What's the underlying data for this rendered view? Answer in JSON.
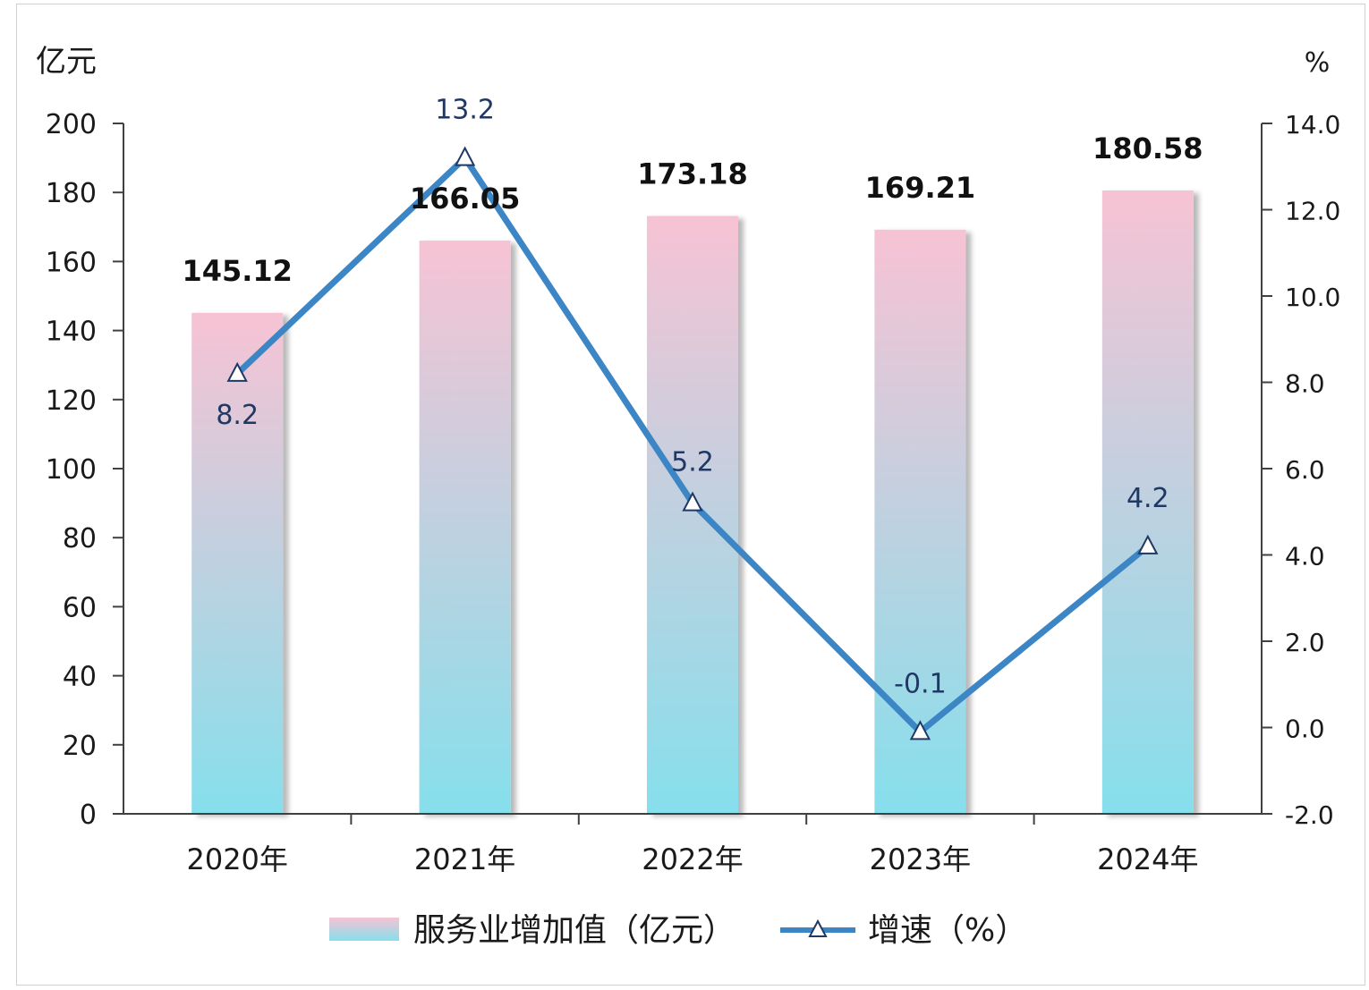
{
  "chart_data": {
    "type": "bar",
    "categories": [
      "2020年",
      "2021年",
      "2022年",
      "2023年",
      "2024年"
    ],
    "series": [
      {
        "name": "服务业增加值（亿元）",
        "type": "bar",
        "axis": "left",
        "values": [
          145.12,
          166.05,
          173.18,
          169.21,
          180.58
        ],
        "labels": [
          "145.12",
          "166.05",
          "173.18",
          "169.21",
          "180.58"
        ],
        "gradient_top": "#f7c3d4",
        "gradient_bottom": "#86dfec"
      },
      {
        "name": "增速（%）",
        "type": "line",
        "axis": "right",
        "marker": "triangle",
        "values": [
          8.2,
          13.2,
          5.2,
          -0.1,
          4.2
        ],
        "labels": [
          "8.2",
          "13.2",
          "5.2",
          "-0.1",
          "4.2"
        ],
        "color": "#3d86c6"
      }
    ],
    "left_axis": {
      "unit": "亿元",
      "ylim": [
        0,
        200
      ],
      "ticks": [
        "0",
        "20",
        "40",
        "60",
        "80",
        "100",
        "120",
        "140",
        "160",
        "180",
        "200"
      ]
    },
    "right_axis": {
      "unit": "%",
      "ylim": [
        -2.0,
        14.0
      ],
      "ticks": [
        "-2.0",
        "0.0",
        "2.0",
        "4.0",
        "6.0",
        "8.0",
        "10.0",
        "12.0",
        "14.0"
      ]
    },
    "grid": false,
    "legend_position": "bottom"
  }
}
